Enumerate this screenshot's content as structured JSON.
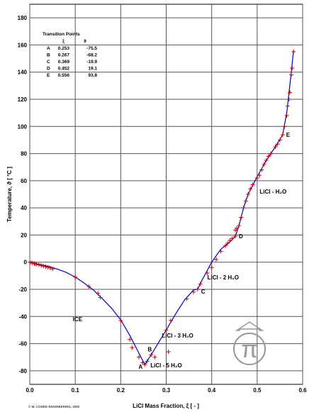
{
  "chart_data": {
    "type": "line",
    "xlabel": "LiCl Mass Fraction, ξ [ - ]",
    "ylabel": "Temperature, ϑ [ °C ]",
    "xlim": [
      0.0,
      0.6
    ],
    "ylim": [
      -90,
      190
    ],
    "x_ticks": [
      "0.0",
      "0.1",
      "0.2",
      "0.3",
      "0.4",
      "0.5",
      "0.6"
    ],
    "y_ticks": [
      "-80",
      "-60",
      "-40",
      "-20",
      "0",
      "20",
      "40",
      "60",
      "80",
      "100",
      "120",
      "140",
      "160",
      "180"
    ],
    "grid": true,
    "series": [
      {
        "kind": "fitted-curve",
        "color": "#0000cc",
        "points": [
          [
            0.0,
            0.0
          ],
          [
            0.02,
            -1.5
          ],
          [
            0.04,
            -3.0
          ],
          [
            0.06,
            -5.0
          ],
          [
            0.08,
            -7.5
          ],
          [
            0.1,
            -11.0
          ],
          [
            0.12,
            -15.5
          ],
          [
            0.14,
            -20.5
          ],
          [
            0.16,
            -27.0
          ],
          [
            0.18,
            -34.0
          ],
          [
            0.2,
            -42.5
          ],
          [
            0.22,
            -54.0
          ],
          [
            0.24,
            -67.0
          ],
          [
            0.253,
            -75.5
          ],
          [
            0.267,
            -68.2
          ],
          [
            0.28,
            -61.0
          ],
          [
            0.3,
            -50.0
          ],
          [
            0.32,
            -38.5
          ],
          [
            0.34,
            -28.0
          ],
          [
            0.36,
            -20.5
          ],
          [
            0.369,
            -19.9
          ],
          [
            0.38,
            -12.5
          ],
          [
            0.4,
            0.0
          ],
          [
            0.42,
            9.5
          ],
          [
            0.44,
            15.0
          ],
          [
            0.452,
            19.1
          ],
          [
            0.46,
            27.0
          ],
          [
            0.47,
            40.0
          ],
          [
            0.48,
            50.0
          ],
          [
            0.5,
            63.0
          ],
          [
            0.52,
            75.0
          ],
          [
            0.54,
            85.0
          ],
          [
            0.556,
            93.8
          ],
          [
            0.565,
            110.0
          ],
          [
            0.57,
            125.0
          ],
          [
            0.575,
            140.0
          ],
          [
            0.58,
            156.0
          ]
        ]
      },
      {
        "kind": "measured-points",
        "color": "#cc0000",
        "points": [
          [
            0.0,
            0.0
          ],
          [
            0.003,
            -0.3
          ],
          [
            0.006,
            -0.6
          ],
          [
            0.01,
            -1.0
          ],
          [
            0.012,
            -1.2
          ],
          [
            0.015,
            -1.5
          ],
          [
            0.02,
            -2.0
          ],
          [
            0.025,
            -2.4
          ],
          [
            0.03,
            -2.9
          ],
          [
            0.035,
            -3.3
          ],
          [
            0.04,
            -3.7
          ],
          [
            0.045,
            -4.2
          ],
          [
            0.05,
            -5.0
          ],
          [
            0.1,
            -11.0
          ],
          [
            0.13,
            -18.0
          ],
          [
            0.15,
            -23.0
          ],
          [
            0.155,
            -26.0
          ],
          [
            0.2,
            -43.0
          ],
          [
            0.22,
            -57.0
          ],
          [
            0.225,
            -63.0
          ],
          [
            0.24,
            -70.0
          ],
          [
            0.248,
            -74.0
          ],
          [
            0.253,
            -75.5
          ],
          [
            0.258,
            -73.0
          ],
          [
            0.267,
            -68.2
          ],
          [
            0.275,
            -70.0
          ],
          [
            0.305,
            -66.0
          ],
          [
            0.3,
            -50.0
          ],
          [
            0.31,
            -43.0
          ],
          [
            0.345,
            -27.0
          ],
          [
            0.36,
            -22.0
          ],
          [
            0.369,
            -19.9
          ],
          [
            0.375,
            -16.0
          ],
          [
            0.39,
            -8.0
          ],
          [
            0.4,
            -4.0
          ],
          [
            0.41,
            2.0
          ],
          [
            0.42,
            8.0
          ],
          [
            0.43,
            12.0
          ],
          [
            0.435,
            14.0
          ],
          [
            0.44,
            16.0
          ],
          [
            0.445,
            17.5
          ],
          [
            0.452,
            19.1
          ],
          [
            0.452,
            23.5
          ],
          [
            0.455,
            25.0
          ],
          [
            0.46,
            27.0
          ],
          [
            0.465,
            33.0
          ],
          [
            0.47,
            40.0
          ],
          [
            0.475,
            45.0
          ],
          [
            0.48,
            50.0
          ],
          [
            0.485,
            54.0
          ],
          [
            0.49,
            57.0
          ],
          [
            0.5,
            62.0
          ],
          [
            0.505,
            64.0
          ],
          [
            0.51,
            68.0
          ],
          [
            0.515,
            72.0
          ],
          [
            0.52,
            75.0
          ],
          [
            0.525,
            78.0
          ],
          [
            0.53,
            80.0
          ],
          [
            0.54,
            85.0
          ],
          [
            0.545,
            87.0
          ],
          [
            0.55,
            90.0
          ],
          [
            0.556,
            93.8
          ],
          [
            0.56,
            100.0
          ],
          [
            0.565,
            108.0
          ],
          [
            0.567,
            115.0
          ],
          [
            0.57,
            120.0
          ],
          [
            0.572,
            125.0
          ],
          [
            0.575,
            138.0
          ],
          [
            0.577,
            143.0
          ],
          [
            0.58,
            155.0
          ]
        ]
      }
    ],
    "transition_points": {
      "title": "Transition Points",
      "col_xi": "ξ",
      "col_theta": "ϑ",
      "rows": [
        {
          "label": "A",
          "xi": "0.253",
          "theta": "-75.5"
        },
        {
          "label": "B",
          "xi": "0.267",
          "theta": "-68.2"
        },
        {
          "label": "C",
          "xi": "0.369",
          "theta": "-19.9"
        },
        {
          "label": "D",
          "xi": "0.452",
          "theta": "19.1"
        },
        {
          "label": "E",
          "xi": "0.556",
          "theta": "93.8"
        }
      ]
    },
    "point_labels": [
      {
        "text": "A",
        "x": 0.253,
        "y": -75.5
      },
      {
        "text": "B",
        "x": 0.267,
        "y": -68.2
      },
      {
        "text": "C",
        "x": 0.369,
        "y": -19.9
      },
      {
        "text": "D",
        "x": 0.452,
        "y": 19.1
      },
      {
        "text": "E",
        "x": 0.556,
        "y": 93.8
      }
    ],
    "region_labels": [
      {
        "text": "ICE",
        "x": 0.105,
        "y": -42
      },
      {
        "text": "LiCl - 5 H₂O",
        "x": 0.3,
        "y": -76
      },
      {
        "text": "LiCl - 3 H₂O",
        "x": 0.325,
        "y": -54
      },
      {
        "text": "LiCl - 2 H₂O",
        "x": 0.425,
        "y": -11
      },
      {
        "text": "LiCl - H₂O",
        "x": 0.535,
        "y": 52
      }
    ],
    "copyright": "© M. CONDE ENGINEERING, 2002"
  }
}
